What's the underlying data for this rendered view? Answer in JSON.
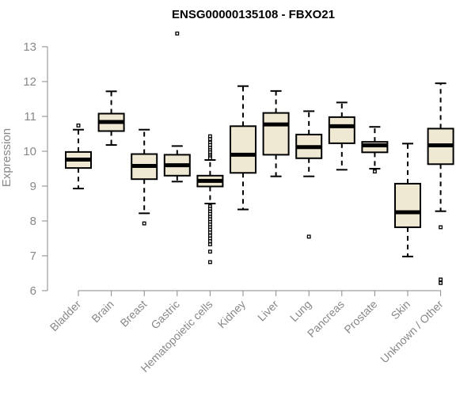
{
  "chart_data": {
    "type": "box",
    "title": "ENSG00000135108 - FBXO21",
    "ylabel": "Expression",
    "ylim": [
      6,
      13
    ],
    "yticks": [
      6,
      7,
      8,
      9,
      10,
      11,
      12,
      13
    ],
    "grid": false,
    "legend": "none",
    "box_fill": "#efe8d2",
    "box_stroke": "#000000",
    "categories": [
      "Bladder",
      "Brain",
      "Breast",
      "Gastric",
      "Hematopoietic cells",
      "Kidney",
      "Liver",
      "Lung",
      "Pancreas",
      "Prostate",
      "Skin",
      "Unknown / Other"
    ],
    "boxes": [
      {
        "category": "Bladder",
        "whisker_low": 8.93,
        "q1": 9.52,
        "median": 9.76,
        "q3": 9.98,
        "whisker_high": 10.62,
        "outliers": [
          10.74
        ]
      },
      {
        "category": "Brain",
        "whisker_low": 10.18,
        "q1": 10.58,
        "median": 10.84,
        "q3": 11.08,
        "whisker_high": 11.72,
        "outliers": []
      },
      {
        "category": "Breast",
        "whisker_low": 8.22,
        "q1": 9.2,
        "median": 9.58,
        "q3": 9.92,
        "whisker_high": 10.62,
        "outliers": [
          7.93
        ]
      },
      {
        "category": "Gastric",
        "whisker_low": 9.13,
        "q1": 9.3,
        "median": 9.6,
        "q3": 9.9,
        "whisker_high": 10.15,
        "outliers": [
          13.38
        ]
      },
      {
        "category": "Hematopoietic cells",
        "whisker_low": 8.5,
        "q1": 8.99,
        "median": 9.15,
        "q3": 9.3,
        "whisker_high": 9.75,
        "outliers": [
          10.43,
          10.35,
          10.25,
          10.18,
          10.1,
          10.03,
          9.97,
          9.9,
          9.85,
          9.8,
          8.42,
          8.35,
          8.27,
          8.2,
          8.12,
          8.05,
          7.97,
          7.9,
          7.82,
          7.75,
          7.67,
          7.58,
          7.5,
          7.42,
          7.33,
          7.12,
          6.82
        ]
      },
      {
        "category": "Kidney",
        "whisker_low": 8.33,
        "q1": 9.38,
        "median": 9.9,
        "q3": 10.72,
        "whisker_high": 11.87,
        "outliers": []
      },
      {
        "category": "Liver",
        "whisker_low": 9.28,
        "q1": 9.9,
        "median": 10.77,
        "q3": 11.1,
        "whisker_high": 11.73,
        "outliers": []
      },
      {
        "category": "Lung",
        "whisker_low": 9.28,
        "q1": 9.8,
        "median": 10.12,
        "q3": 10.48,
        "whisker_high": 11.15,
        "outliers": [
          7.55
        ]
      },
      {
        "category": "Pancreas",
        "whisker_low": 9.47,
        "q1": 10.23,
        "median": 10.72,
        "q3": 10.98,
        "whisker_high": 11.4,
        "outliers": []
      },
      {
        "category": "Prostate",
        "whisker_low": 9.5,
        "q1": 9.97,
        "median": 10.17,
        "q3": 10.27,
        "whisker_high": 10.7,
        "outliers": [
          9.42
        ]
      },
      {
        "category": "Skin",
        "whisker_low": 6.98,
        "q1": 7.82,
        "median": 8.25,
        "q3": 9.07,
        "whisker_high": 10.22,
        "outliers": []
      },
      {
        "category": "Unknown / Other",
        "whisker_low": 8.28,
        "q1": 9.63,
        "median": 10.17,
        "q3": 10.65,
        "whisker_high": 11.95,
        "outliers": [
          7.82,
          6.32,
          6.22
        ]
      }
    ]
  }
}
